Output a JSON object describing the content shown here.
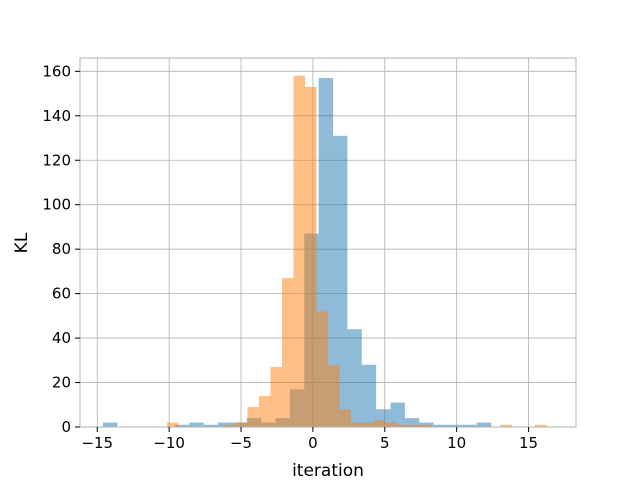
{
  "chart_data": {
    "type": "bar",
    "xlabel": "iteration",
    "ylabel": "KL",
    "xlim": [
      -16.2,
      18.3
    ],
    "ylim": [
      0,
      166
    ],
    "xticks": [
      -15,
      -10,
      -5,
      0,
      5,
      10,
      15
    ],
    "yticks": [
      0,
      20,
      40,
      60,
      80,
      100,
      120,
      140,
      160
    ],
    "grid": true,
    "legend": "none",
    "series": [
      {
        "color": "#1f77b4",
        "opacity": 0.5,
        "bin_start": -14.6,
        "bin_width": 1.0,
        "counts": [
          2,
          0,
          0,
          0,
          0,
          1,
          2,
          1,
          2,
          2,
          4,
          2,
          4,
          17,
          87,
          157,
          131,
          44,
          28,
          8,
          11,
          4,
          2,
          1,
          1,
          1,
          2
        ]
      },
      {
        "color": "#ff7f0e",
        "opacity": 0.5,
        "bin_start": -10.15,
        "bin_width": 0.8,
        "counts": [
          2,
          0,
          0,
          0,
          0,
          1,
          2,
          9,
          14,
          27,
          67,
          158,
          153,
          52,
          28,
          8,
          2,
          2,
          3,
          2,
          1,
          1,
          1,
          0,
          0,
          0,
          0,
          0,
          0,
          1,
          0,
          0,
          1
        ]
      }
    ]
  }
}
